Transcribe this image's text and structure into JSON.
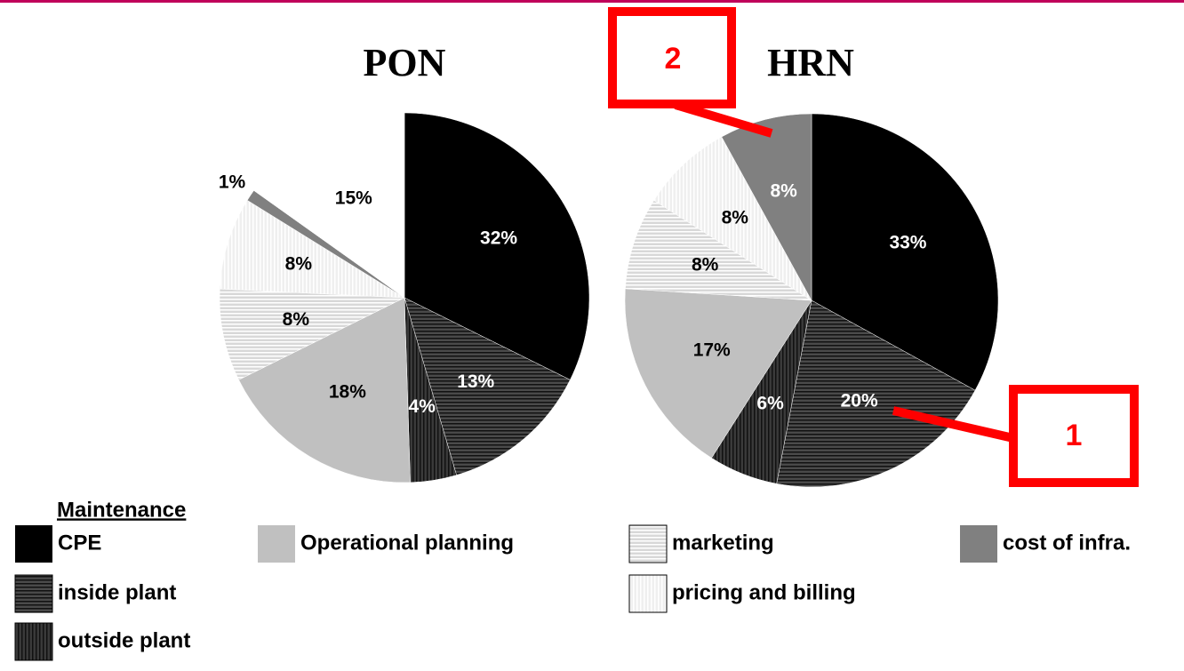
{
  "chart_data": [
    {
      "type": "pie",
      "title": "PON",
      "values": [
        32,
        13,
        4,
        18,
        8,
        8,
        1,
        15
      ]
    },
    {
      "type": "pie",
      "title": "HRN",
      "values": [
        33,
        20,
        6,
        17,
        8,
        8,
        8,
        null
      ]
    }
  ],
  "legend": {
    "title": "Maintenance",
    "categories": [
      "CPE",
      "inside plant",
      "outside plant",
      "Operational planning",
      "marketing",
      "pricing and billing",
      "cost of infra.",
      null
    ],
    "colors": [
      "#000000",
      "#4a4a4a",
      "#3a3a3a",
      "#c0c0c0",
      "#d8d8d8",
      "#efefef",
      "#808080",
      "#ffffff"
    ],
    "hatch": [
      null,
      "horizontal",
      "vertical",
      null,
      "horizontal",
      "vertical",
      null,
      null
    ]
  },
  "callouts": [
    "2",
    "1"
  ]
}
